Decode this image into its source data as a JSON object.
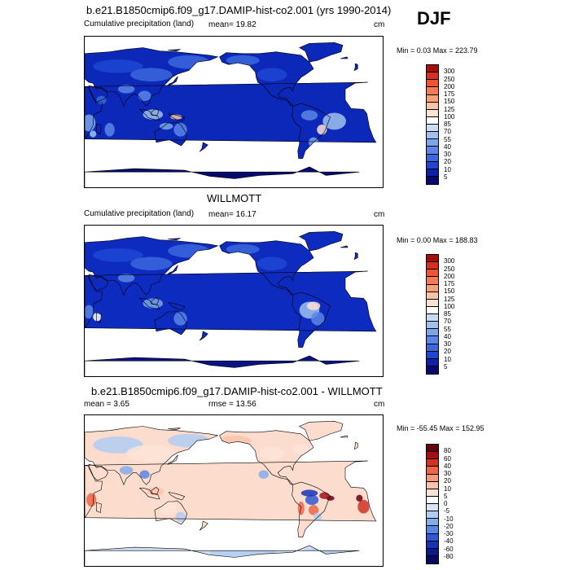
{
  "season": "DJF",
  "panels": [
    {
      "title": "b.e21.B1850cmip6.f09_g17.DAMIP-hist-co2.001 (yrs 1990-2014)",
      "left_label": "Cumulative precipitation (land)",
      "center_label": "mean=  19.82",
      "units": "cm",
      "minmax": "Min =   0.03 Max = 223.79",
      "levels": [
        "300",
        "250",
        "200",
        "175",
        "150",
        "125",
        "100",
        "85",
        "70",
        "55",
        "40",
        "30",
        "20",
        "10",
        "5"
      ],
      "colors": [
        "#a50f0a",
        "#d62f1f",
        "#ee5533",
        "#f77b52",
        "#fca07a",
        "#fdc3a6",
        "#fde1d2",
        "#ffffff",
        "#c9dcf4",
        "#9fc1ee",
        "#7aa5ea",
        "#5a86e5",
        "#3c67dd",
        "#1f46d2",
        "#0e1fa8",
        "#050a6e"
      ],
      "type": "precip"
    },
    {
      "title": "WILLMOTT",
      "left_label": "Cumulative precipitation (land)",
      "center_label": "mean=  16.17",
      "units": "cm",
      "minmax": "Min =   0.00 Max = 188.83",
      "levels": [
        "300",
        "250",
        "200",
        "175",
        "150",
        "125",
        "100",
        "85",
        "70",
        "55",
        "40",
        "30",
        "20",
        "10",
        "5"
      ],
      "colors": [
        "#a50f0a",
        "#d62f1f",
        "#ee5533",
        "#f77b52",
        "#fca07a",
        "#fdc3a6",
        "#fde1d2",
        "#ffffff",
        "#c9dcf4",
        "#9fc1ee",
        "#7aa5ea",
        "#5a86e5",
        "#3c67dd",
        "#1f46d2",
        "#0e1fa8",
        "#050a6e"
      ],
      "type": "precip"
    },
    {
      "title": "b.e21.B1850cmip6.f09_g17.DAMIP-hist-co2.001 - WILLMOTT",
      "left_label": "mean =   3.65",
      "center_label": "rmse =  13.56",
      "units": "cm",
      "minmax": "Min = -55.45 Max = 152.95",
      "levels": [
        "80",
        "60",
        "40",
        "30",
        "20",
        "10",
        "5",
        "0",
        "-5",
        "-10",
        "-20",
        "-30",
        "-40",
        "-60",
        "-80"
      ],
      "colors": [
        "#67000d",
        "#a50f15",
        "#d03224",
        "#ef6548",
        "#f7987a",
        "#fbc3a8",
        "#fde4d6",
        "#ffffff",
        "#d7e6f7",
        "#b0cdf1",
        "#83aceb",
        "#5a86e5",
        "#3058d6",
        "#1733b5",
        "#0b1a8a",
        "#050a5c"
      ],
      "type": "diff"
    }
  ]
}
